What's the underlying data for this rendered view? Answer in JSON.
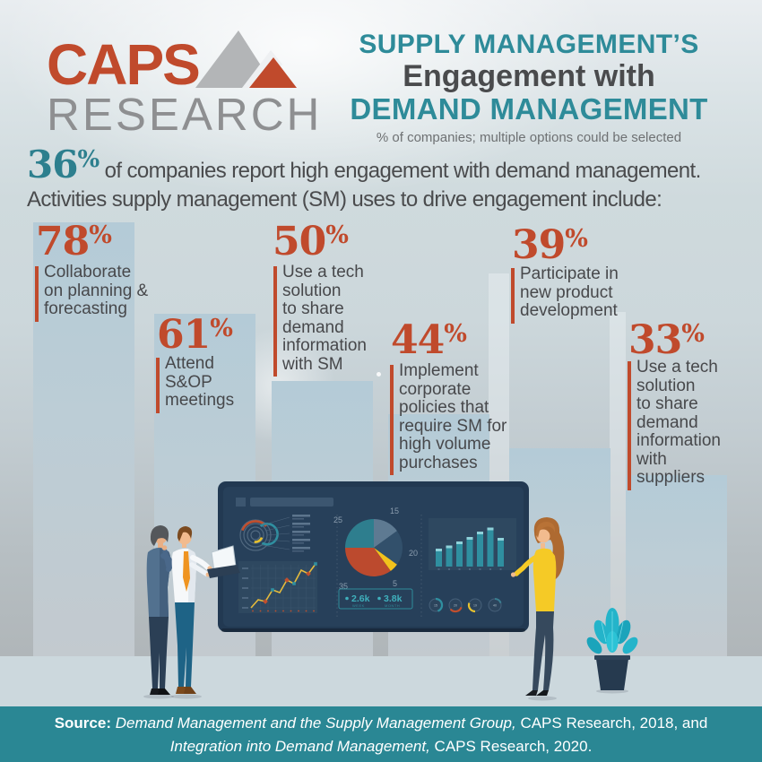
{
  "logo": {
    "line1": "CAPS",
    "line2": "RESEARCH"
  },
  "header": {
    "title_line1": "SUPPLY MANAGEMENT’S",
    "title_line2": "Engagement with",
    "title_line3": "DEMAND MANAGEMENT",
    "subtitle": "% of companies; multiple options could be selected"
  },
  "intro": {
    "stat_digits": "36",
    "stat_symbol": "%",
    "line1_rest": " of companies report high engagement with demand management.",
    "line2": "Activities supply management (SM) uses to drive engagement include:"
  },
  "bars": [
    {
      "pct_digits": "78",
      "pct_symbol": "%",
      "label_lines": [
        "Collaborate",
        "on planning &",
        "forecasting"
      ]
    },
    {
      "pct_digits": "61",
      "pct_symbol": "%",
      "label_lines": [
        "Attend",
        "S&OP",
        "meetings"
      ]
    },
    {
      "pct_digits": "50",
      "pct_symbol": "%",
      "label_lines": [
        "Use a tech",
        "solution",
        "to share",
        "demand",
        "information",
        "with SM"
      ]
    },
    {
      "pct_digits": "44",
      "pct_symbol": "%",
      "label_lines": [
        "Implement",
        "corporate",
        "policies that",
        "require SM for",
        "high volume",
        "purchases"
      ]
    },
    {
      "pct_digits": "39",
      "pct_symbol": "%",
      "label_lines": [
        "Participate in",
        "new product",
        "development"
      ]
    },
    {
      "pct_digits": "33",
      "pct_symbol": "%",
      "label_lines": [
        "Use a tech",
        "solution",
        "to share",
        "demand",
        "information",
        "with",
        "suppliers"
      ]
    }
  ],
  "chart_data": [
    {
      "type": "bar",
      "title": "SUPPLY MANAGEMENT’S Engagement with DEMAND MANAGEMENT",
      "subtitle": "% of companies; multiple options could be selected",
      "annotation": "36% of companies report high engagement with demand management. Activities supply management (SM) uses to drive engagement include:",
      "categories": [
        "Collaborate on planning & forecasting",
        "Attend S&OP meetings",
        "Use a tech solution to share demand information with SM",
        "Implement corporate policies that require SM for high volume purchases",
        "Participate in new product development",
        "Use a tech solution to share demand information with suppliers"
      ],
      "values": [
        78,
        61,
        50,
        44,
        39,
        33
      ],
      "unit": "%",
      "ylim": [
        0,
        100
      ],
      "grid": false,
      "legend": false
    },
    {
      "type": "pie",
      "title": "dashboard-illustration-pie",
      "labels": [
        "15",
        "20",
        "5",
        "35",
        "25"
      ],
      "values": [
        15,
        20,
        5,
        35,
        25
      ]
    }
  ],
  "dashboard": {
    "pie_labels": {
      "p15": "15",
      "p20": "20",
      "p5": "5",
      "p35": "35",
      "p25": "25"
    },
    "stat1": "2.6k",
    "stat1_caption": "WEEK",
    "stat2": "3.8k",
    "stat2_caption": "MONTH",
    "gauges": [
      "15",
      "20",
      "19",
      "40"
    ]
  },
  "footer": {
    "source_label": "Source:",
    "ref1_title": "Demand Management and the Supply Management Group,",
    "ref1_rest": " CAPS Research, 2018, and",
    "ref2_title": "Integration into Demand Management,",
    "ref2_rest": " CAPS Research, 2020."
  },
  "colors": {
    "accent_red": "#c04a2c",
    "teal": "#2e8b99",
    "intro_stat_teal": "#2d7f8e",
    "heading_dark": "#4a4b4d",
    "bar_fill": "#b7cdd9",
    "footer_bg": "#2a8794"
  }
}
